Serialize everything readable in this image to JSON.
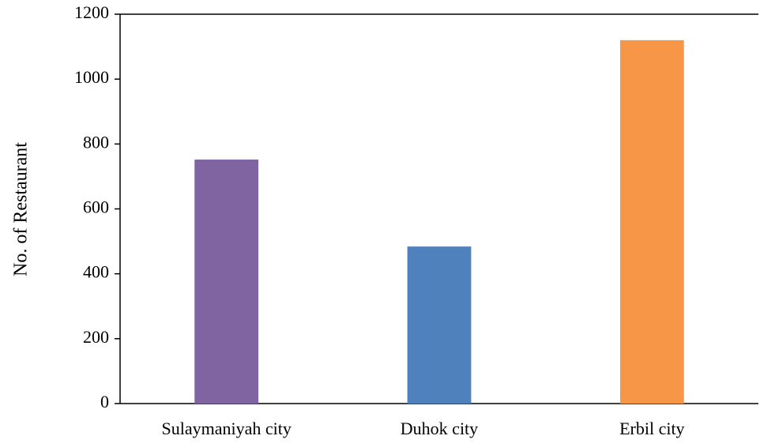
{
  "chart_data": {
    "type": "bar",
    "y_axis_label": "No. of Restaurant",
    "categories": [
      "Sulaymaniyah city",
      "Duhok city",
      "Erbil city"
    ],
    "values": [
      752,
      484,
      1120
    ],
    "colors": [
      "#8064a2",
      "#4f81bd",
      "#f79646"
    ],
    "ylim": [
      0,
      1200
    ],
    "yticks": [
      0,
      200,
      400,
      600,
      800,
      1000,
      1200
    ],
    "grid": false
  }
}
